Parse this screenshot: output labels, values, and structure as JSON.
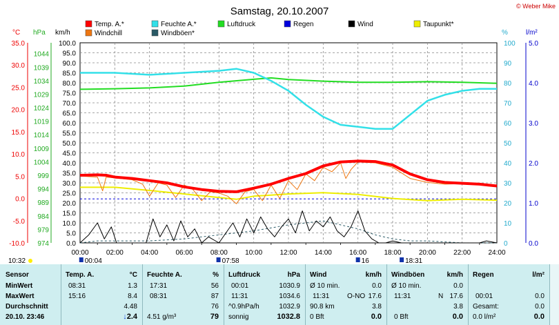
{
  "title": "Samstag, 20.10.2007",
  "credit": "© Weber Mike",
  "legend": [
    {
      "label": "Temp. A.*",
      "color": "#ff0000"
    },
    {
      "label": "Feuchte A.*",
      "color": "#33e0e8"
    },
    {
      "label": "Luftdruck",
      "color": "#22dd22"
    },
    {
      "label": "Regen",
      "color": "#0000dd"
    },
    {
      "label": "Wind",
      "color": "#000000"
    },
    {
      "label": "Taupunkt*",
      "color": "#eeee00"
    },
    {
      "label": "Windchill",
      "color": "#ee7711"
    },
    {
      "label": "Windböen*",
      "color": "#2a5a66"
    }
  ],
  "axis_units": {
    "temp": "°C",
    "pressure": "hPa",
    "wind": "km/h",
    "humidity": "%",
    "rain": "l/m²"
  },
  "chart_data": {
    "type": "line",
    "x_range_hours": [
      0,
      24
    ],
    "x_ticks": [
      "00:00",
      "02:00",
      "04:00",
      "06:00",
      "08:00",
      "10:00",
      "12:00",
      "14:00",
      "16:00",
      "18:00",
      "20:00",
      "22:00",
      "24:00"
    ],
    "axes": {
      "temp": {
        "label": "°C",
        "range": [
          -10,
          35
        ],
        "ticks": [
          "35.0",
          "30.0",
          "25.0",
          "20.0",
          "15.0",
          "10.0",
          "5.0",
          "0.0",
          "-5.0",
          "-10.0"
        ]
      },
      "pressure": {
        "label": "hPa",
        "range": [
          974,
          1048
        ],
        "ticks": [
          "1044",
          "1039",
          "1034",
          "1029",
          "1024",
          "1019",
          "1014",
          "1009",
          "1004",
          "999",
          "994",
          "989",
          "984",
          "979",
          "974"
        ]
      },
      "wind": {
        "label": "km/h",
        "range": [
          0,
          100
        ],
        "ticks": [
          "100.0",
          "95.0",
          "90.0",
          "85.0",
          "80.0",
          "75.0",
          "70.0",
          "65.0",
          "60.0",
          "55.0",
          "50.0",
          "45.0",
          "40.0",
          "35.0",
          "30.0",
          "25.0",
          "20.0",
          "15.0",
          "10.0",
          "5.0",
          "0.0"
        ]
      },
      "humidity": {
        "label": "%",
        "range": [
          0,
          100
        ],
        "ticks": [
          "100",
          "90",
          "80",
          "70",
          "60",
          "50",
          "40",
          "30",
          "20",
          "10",
          "0"
        ]
      },
      "rain": {
        "label": "l/m²",
        "range": [
          0,
          5
        ],
        "ticks": [
          "5.0",
          "4.0",
          "3.0",
          "2.0",
          "1.0",
          "0.0"
        ]
      }
    },
    "grid": true,
    "series": [
      {
        "name": "Temp. A.*",
        "axis": "temp",
        "color": "#ff0000",
        "points": [
          [
            0,
            5.2
          ],
          [
            1,
            5.3
          ],
          [
            1.5,
            5.2
          ],
          [
            2,
            4.8
          ],
          [
            3,
            4.5
          ],
          [
            4,
            4.0
          ],
          [
            5,
            3.5
          ],
          [
            6,
            2.6
          ],
          [
            7,
            2.0
          ],
          [
            8,
            1.6
          ],
          [
            9,
            1.5
          ],
          [
            10,
            2.3
          ],
          [
            11,
            3.2
          ],
          [
            12,
            4.5
          ],
          [
            13,
            5.6
          ],
          [
            14,
            7.3
          ],
          [
            15,
            8.2
          ],
          [
            16,
            8.4
          ],
          [
            17,
            8.3
          ],
          [
            18,
            7.5
          ],
          [
            19,
            5.5
          ],
          [
            20,
            4.2
          ],
          [
            21,
            3.6
          ],
          [
            22,
            3.4
          ],
          [
            23,
            3.2
          ],
          [
            23.5,
            3.0
          ],
          [
            24,
            2.8
          ]
        ]
      },
      {
        "name": "Windchill",
        "axis": "temp",
        "color": "#ee7711",
        "points": [
          [
            0,
            5.0
          ],
          [
            1,
            4.8
          ],
          [
            1.3,
            1.7
          ],
          [
            1.5,
            4.8
          ],
          [
            2,
            4.6
          ],
          [
            3,
            4.2
          ],
          [
            3.6,
            3.2
          ],
          [
            4,
            0.5
          ],
          [
            4.5,
            3.5
          ],
          [
            5,
            3.0
          ],
          [
            5.5,
            0.2
          ],
          [
            6,
            3.0
          ],
          [
            6.5,
            2.0
          ],
          [
            7,
            -0.5
          ],
          [
            7.5,
            1.5
          ],
          [
            8,
            1.2
          ],
          [
            8.5,
            0.5
          ],
          [
            9,
            -1.2
          ],
          [
            9.5,
            1.5
          ],
          [
            10,
            2.0
          ],
          [
            10.5,
            -0.5
          ],
          [
            11,
            3.0
          ],
          [
            11.5,
            0.0
          ],
          [
            12,
            4.0
          ],
          [
            12.5,
            2.0
          ],
          [
            13,
            5.5
          ],
          [
            13.5,
            4.0
          ],
          [
            14,
            7.0
          ],
          [
            14.5,
            6.0
          ],
          [
            15,
            8.0
          ],
          [
            15.3,
            4.5
          ],
          [
            15.6,
            6.5
          ],
          [
            16,
            8.2
          ],
          [
            17,
            8.0
          ],
          [
            18,
            7.0
          ],
          [
            19,
            4.5
          ],
          [
            20,
            3.6
          ],
          [
            21,
            3.2
          ],
          [
            22,
            3.3
          ],
          [
            23,
            3.2
          ],
          [
            24,
            2.8
          ]
        ]
      },
      {
        "name": "Taupunkt*",
        "axis": "temp",
        "color": "#eeee00",
        "points": [
          [
            0,
            2.5
          ],
          [
            2,
            2.5
          ],
          [
            4,
            1.8
          ],
          [
            6,
            1.0
          ],
          [
            8,
            0.2
          ],
          [
            9,
            -0.2
          ],
          [
            10,
            0.5
          ],
          [
            12,
            1.0
          ],
          [
            14,
            1.3
          ],
          [
            16,
            0.9
          ],
          [
            18,
            0.0
          ],
          [
            20,
            -0.5
          ],
          [
            22,
            -0.2
          ],
          [
            24,
            -0.4
          ]
        ]
      },
      {
        "name": "Feuchte A.*",
        "axis": "humidity",
        "color": "#33e0e8",
        "points": [
          [
            0,
            85
          ],
          [
            2,
            85
          ],
          [
            4,
            84
          ],
          [
            6,
            85
          ],
          [
            8,
            86
          ],
          [
            9,
            87
          ],
          [
            10,
            85
          ],
          [
            11,
            81
          ],
          [
            12,
            76
          ],
          [
            13,
            69
          ],
          [
            14,
            63
          ],
          [
            15,
            59
          ],
          [
            16,
            58
          ],
          [
            17,
            57
          ],
          [
            18,
            57
          ],
          [
            19,
            64
          ],
          [
            20,
            71
          ],
          [
            21,
            74
          ],
          [
            22,
            76
          ],
          [
            23,
            77
          ],
          [
            24,
            77
          ]
        ]
      },
      {
        "name": "Luftdruck",
        "axis": "pressure",
        "color": "#22dd22",
        "points": [
          [
            0,
            1030.8
          ],
          [
            2,
            1031.0
          ],
          [
            4,
            1031.3
          ],
          [
            6,
            1032.0
          ],
          [
            8,
            1033.4
          ],
          [
            10,
            1034.5
          ],
          [
            11,
            1035.0
          ],
          [
            12,
            1034.4
          ],
          [
            14,
            1033.8
          ],
          [
            16,
            1033.4
          ],
          [
            18,
            1033.4
          ],
          [
            20,
            1033.6
          ],
          [
            22,
            1033.4
          ],
          [
            24,
            1033.0
          ]
        ]
      },
      {
        "name": "Wind",
        "axis": "wind",
        "color": "#000000",
        "points": [
          [
            0,
            0
          ],
          [
            0.5,
            4
          ],
          [
            1,
            10
          ],
          [
            1.4,
            2
          ],
          [
            1.8,
            8
          ],
          [
            2.1,
            0
          ],
          [
            3,
            0
          ],
          [
            3.8,
            0
          ],
          [
            4.2,
            12
          ],
          [
            4.6,
            3
          ],
          [
            5,
            9
          ],
          [
            5.4,
            1
          ],
          [
            5.8,
            11
          ],
          [
            6.2,
            3
          ],
          [
            6.6,
            7
          ],
          [
            7,
            0
          ],
          [
            7.4,
            3
          ],
          [
            8,
            0
          ],
          [
            8.4,
            5
          ],
          [
            8.8,
            10
          ],
          [
            9.2,
            3
          ],
          [
            9.6,
            12
          ],
          [
            10,
            5
          ],
          [
            10.4,
            13
          ],
          [
            10.8,
            7
          ],
          [
            11.2,
            3
          ],
          [
            11.6,
            8
          ],
          [
            12,
            12
          ],
          [
            12.4,
            5
          ],
          [
            12.8,
            16
          ],
          [
            13.2,
            6
          ],
          [
            13.6,
            11
          ],
          [
            14,
            8
          ],
          [
            14.4,
            13
          ],
          [
            14.8,
            6
          ],
          [
            15.2,
            3
          ],
          [
            15.6,
            8
          ],
          [
            16,
            16
          ],
          [
            16.4,
            6
          ],
          [
            16.8,
            2
          ],
          [
            17.2,
            0
          ],
          [
            17.6,
            0
          ],
          [
            18.0,
            1
          ],
          [
            18.5,
            0
          ],
          [
            20,
            0
          ],
          [
            23,
            0
          ],
          [
            23.4,
            1
          ],
          [
            24,
            0
          ]
        ]
      },
      {
        "name": "Windböen*",
        "axis": "wind",
        "color": "#2a5a66",
        "points": [
          [
            0,
            0
          ],
          [
            1,
            1
          ],
          [
            2,
            1
          ],
          [
            4,
            1
          ],
          [
            6,
            2
          ],
          [
            8,
            4
          ],
          [
            10,
            6
          ],
          [
            12,
            9
          ],
          [
            13,
            10
          ],
          [
            14,
            11
          ],
          [
            15,
            9
          ],
          [
            16,
            7
          ],
          [
            17,
            4
          ],
          [
            18,
            2
          ],
          [
            19,
            1
          ],
          [
            20,
            1
          ],
          [
            22,
            0
          ],
          [
            24,
            0
          ]
        ]
      },
      {
        "name": "Regen",
        "axis": "rain",
        "color": "#0000dd",
        "points": [
          [
            0,
            1.1
          ],
          [
            24,
            1.1
          ]
        ]
      }
    ],
    "time_markers": [
      {
        "label": "10:32",
        "hour": 0
      },
      {
        "label": "00:04",
        "hour": 0.07
      },
      {
        "label": "07:58",
        "hour": 7.97
      },
      {
        "label": "16",
        "hour": 16.0
      },
      {
        "label": "18:31",
        "hour": 18.52
      }
    ]
  },
  "stats": {
    "sensor": {
      "header": "Sensor",
      "rows": [
        "MinWert",
        "MaxWert",
        "Durchschnitt",
        "20.10. 23:46"
      ]
    },
    "temp": {
      "header": "Temp. A.",
      "unit": "°C",
      "min_time": "08:31",
      "min_val": "1.3",
      "max_time": "15:16",
      "max_val": "8.4",
      "avg_val": "4.48",
      "trend": "↓",
      "current": "2.4"
    },
    "humidity": {
      "header": "Feuchte A.",
      "unit": "%",
      "min_time": "17:31",
      "min_val": "56",
      "max_time": "08:31",
      "max_val": "87",
      "avg_val": "76",
      "abs_hum": "4.51 g/m³",
      "current": "79"
    },
    "pressure": {
      "header": "Luftdruck",
      "unit": "hPa",
      "min_time": "00:01",
      "min_val": "1030.9",
      "max_time": "11:31",
      "max_val": "1034.6",
      "trend_text": "^0.9hPa/h",
      "avg_val": "1032.9",
      "forecast": "sonnig",
      "current": "1032.8"
    },
    "wind": {
      "header": "Wind",
      "unit": "km/h",
      "r1_label": "Ø 10 min.",
      "r1_val": "0.0",
      "r2_time": "11:31",
      "r2_dir": "O-NO",
      "r2_val": "17.6",
      "r3_label": "90.8 km",
      "r3_val": "3.8",
      "r4_label": "0 Bft",
      "current": "0.0"
    },
    "gusts": {
      "header": "Windböen",
      "unit": "km/h",
      "r1_label": "Ø 10 min.",
      "r1_val": "0.0",
      "r2_time": "11:31",
      "r2_dir": "N",
      "r2_val": "17.6",
      "r3_val": "3.8",
      "r4_label": "0 Bft",
      "current": "0.0"
    },
    "rain": {
      "header": "Regen",
      "unit": "l/m²",
      "r2_time": "00:01",
      "r2_val": "0.0",
      "r3_label": "Gesamt:",
      "r3_val": "0.0",
      "r4_label": "0.0 l/m²",
      "current": "0.0"
    }
  }
}
